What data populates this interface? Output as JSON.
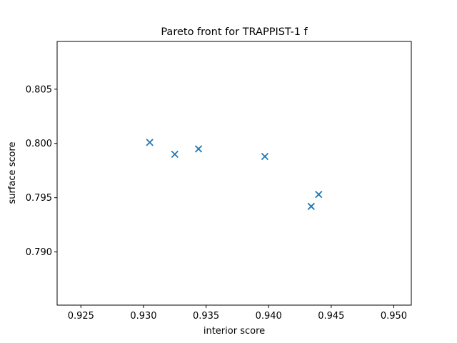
{
  "chart_data": {
    "type": "scatter",
    "title": "Pareto front for TRAPPIST-1 f",
    "xlabel": "interior score",
    "ylabel": "surface score",
    "xlim": [
      0.9231,
      0.9514
    ],
    "ylim": [
      0.7851,
      0.8094
    ],
    "xticks": [
      0.925,
      0.93,
      0.935,
      0.94,
      0.945,
      0.95
    ],
    "xtick_labels": [
      "0.925",
      "0.930",
      "0.935",
      "0.940",
      "0.945",
      "0.950"
    ],
    "yticks": [
      0.79,
      0.795,
      0.8,
      0.805
    ],
    "ytick_labels": [
      "0.790",
      "0.795",
      "0.800",
      "0.805"
    ],
    "grid": false,
    "marker": "x",
    "color": "#1f77b4",
    "series": [
      {
        "points": [
          {
            "x": 0.9305,
            "y": 0.8001
          },
          {
            "x": 0.9325,
            "y": 0.799
          },
          {
            "x": 0.9344,
            "y": 0.7995
          },
          {
            "x": 0.9397,
            "y": 0.7988
          },
          {
            "x": 0.9434,
            "y": 0.7942
          },
          {
            "x": 0.944,
            "y": 0.7953
          }
        ]
      }
    ]
  }
}
